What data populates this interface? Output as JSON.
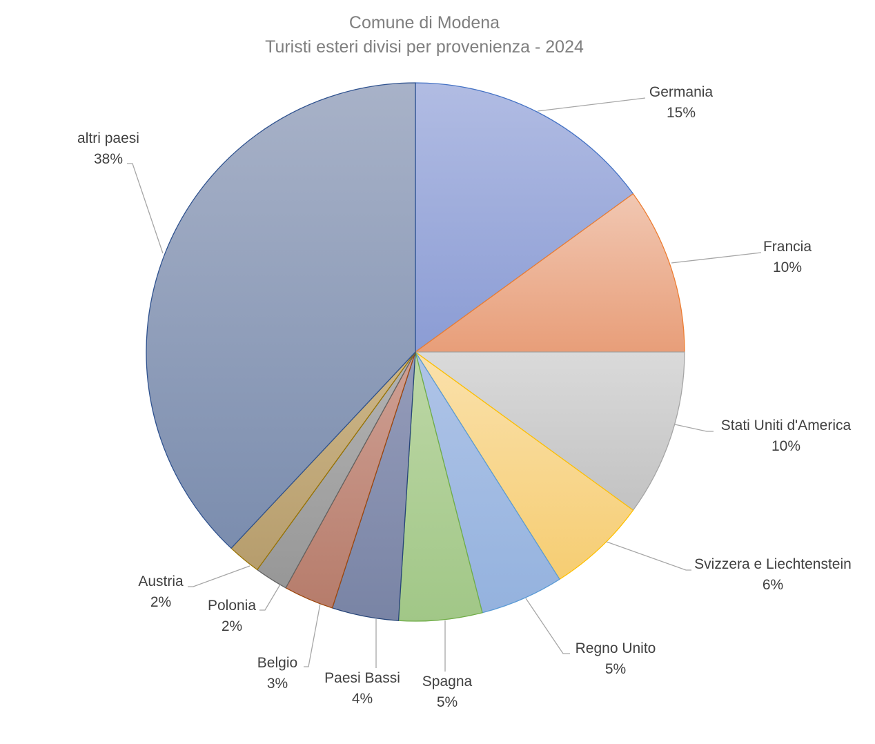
{
  "chart_data": {
    "type": "pie",
    "title": "Comune di Modena",
    "subtitle": "Turisti esteri divisi per provenienza - 2024",
    "categories": [
      "Germania",
      "Francia",
      "Stati Uniti d'America",
      "Svizzera e Liechtenstein",
      "Regno Unito",
      "Spagna",
      "Paesi Bassi",
      "Belgio",
      "Polonia",
      "Austria",
      "altri paesi"
    ],
    "values": [
      15,
      10,
      10,
      6,
      5,
      5,
      4,
      3,
      2,
      2,
      38
    ],
    "data_labels": [
      "15%",
      "10%",
      "10%",
      "6%",
      "5%",
      "5%",
      "4%",
      "3%",
      "2%",
      "2%",
      "38%"
    ],
    "legend": "none",
    "fill_top": [
      "#B1BCE3",
      "#F1C7B2",
      "#DADADA",
      "#FAE1AC",
      "#AFC4E7",
      "#BDD7A6",
      "#959CBA",
      "#CFA094",
      "#B3B3B3",
      "#CDB688",
      "#A8B2C8"
    ],
    "fill_bottom": [
      "#8B9CD4",
      "#E89E79",
      "#C2C2C2",
      "#F6CD72",
      "#94B2DE",
      "#A1C787",
      "#7984A5",
      "#B67C6B",
      "#979797",
      "#B69D6D",
      "#7B8DAE"
    ],
    "edge_colors": [
      "#4472C4",
      "#ED7D31",
      "#A5A5A5",
      "#FFC000",
      "#5B9BD5",
      "#70AD47",
      "#264478",
      "#9E480E",
      "#636363",
      "#997300",
      "#2F528F"
    ]
  }
}
